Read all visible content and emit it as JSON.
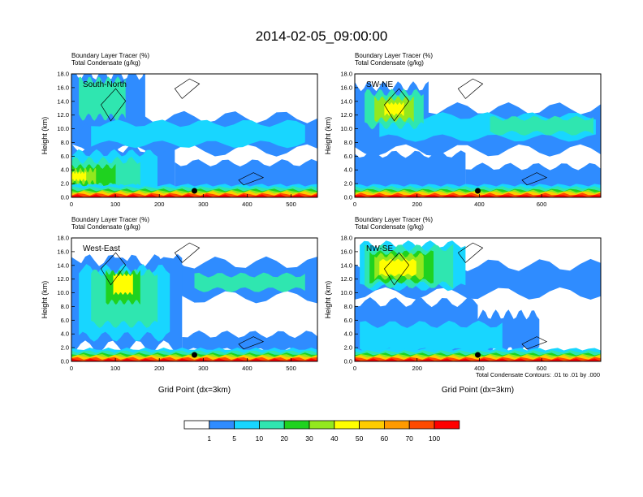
{
  "title": "2014-02-05_09:00:00",
  "colors": {
    "white": "#ffffff",
    "levels": [
      "#ffffff",
      "#2f8cff",
      "#18d6ff",
      "#2fe6b0",
      "#1fd21f",
      "#93e81e",
      "#ffff00",
      "#ffcc00",
      "#ff9a00",
      "#ff4a00",
      "#ff0000"
    ]
  },
  "colorbar": {
    "labels": [
      "1",
      "5",
      "10",
      "20",
      "30",
      "40",
      "50",
      "60",
      "70",
      "100"
    ]
  },
  "contour_note": "Total Condensate Contours: .01 to .01 by .000",
  "chart_data": [
    {
      "type": "heatmap",
      "panel_label": "South-North",
      "header": [
        "Boundary Layer Tracer    (%)",
        "Total Condensate    (g/kg)"
      ],
      "ylabel": "Height (km)",
      "xlabel": "",
      "xlim": [
        0,
        560
      ],
      "ylim": [
        0,
        18
      ],
      "xticks": [
        "0",
        "100",
        "200",
        "300",
        "400",
        "500"
      ],
      "xtick_values": [
        0,
        100,
        200,
        300,
        400,
        500
      ],
      "yticks": [
        "0.0",
        "2.0",
        "4.0",
        "6.0",
        "8.0",
        "10.0",
        "12.0",
        "14.0",
        "16.0",
        "18.0"
      ],
      "marker_x": 280
    },
    {
      "type": "heatmap",
      "panel_label": "SW-NE",
      "header": [
        "Boundary Layer Tracer    (%)",
        "Total Condensate    (g/kg)"
      ],
      "ylabel": "Height (km)",
      "xlabel": "",
      "xlim": [
        0,
        790
      ],
      "ylim": [
        0,
        18
      ],
      "xticks": [
        "0",
        "200",
        "400",
        "600"
      ],
      "xtick_values": [
        0,
        200,
        400,
        600
      ],
      "yticks": [
        "0.0",
        "2.0",
        "4.0",
        "6.0",
        "8.0",
        "10.0",
        "12.0",
        "14.0",
        "16.0",
        "18.0"
      ],
      "marker_x": 395
    },
    {
      "type": "heatmap",
      "panel_label": "West-East",
      "header": [
        "Boundary Layer Tracer    (%)",
        "Total Condensate    (g/kg)"
      ],
      "ylabel": "Height (km)",
      "xlabel": "Grid Point (dx=3km)",
      "xlim": [
        0,
        560
      ],
      "ylim": [
        0,
        18
      ],
      "xticks": [
        "0",
        "100",
        "200",
        "300",
        "400",
        "500"
      ],
      "xtick_values": [
        0,
        100,
        200,
        300,
        400,
        500
      ],
      "yticks": [
        "0.0",
        "2.0",
        "4.0",
        "6.0",
        "8.0",
        "10.0",
        "12.0",
        "14.0",
        "16.0",
        "18.0"
      ],
      "marker_x": 280
    },
    {
      "type": "heatmap",
      "panel_label": "NW-SE",
      "header": [
        "Boundary Layer Tracer    (%)",
        "Total Condensate    (g/kg)"
      ],
      "ylabel": "Height (km)",
      "xlabel": "Grid Point (dx=3km)",
      "xlim": [
        0,
        790
      ],
      "ylim": [
        0,
        18
      ],
      "xticks": [
        "0",
        "200",
        "400",
        "600"
      ],
      "xtick_values": [
        0,
        200,
        400,
        600
      ],
      "yticks": [
        "0.0",
        "2.0",
        "4.0",
        "6.0",
        "8.0",
        "10.0",
        "12.0",
        "14.0",
        "16.0",
        "18.0"
      ],
      "marker_x": 395
    }
  ]
}
